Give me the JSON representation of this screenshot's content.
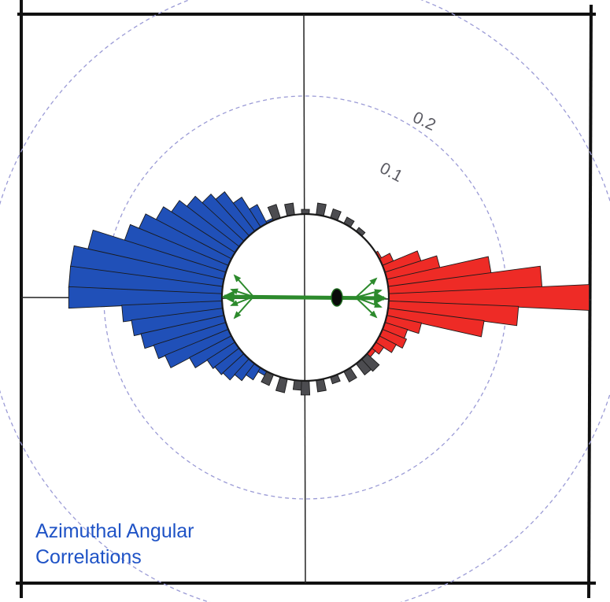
{
  "chart_data": {
    "type": "polar-histogram",
    "title_lines": [
      "Azimuthal Angular",
      "Correlations"
    ],
    "ring_labels": [
      "0.1",
      "0.2"
    ],
    "radial_ticks": [
      0.1,
      0.2
    ],
    "angle_unit": "degrees (0 = right, counter-clockwise)",
    "grid": "dashed-circles",
    "colors": {
      "frame": "#111111",
      "axes": "#222222",
      "rings": "#9b9bd6",
      "away_side": "#2050b8",
      "near_side": "#ee2b26",
      "background": "#4c4c50",
      "arrow": "#2c8a2c",
      "title": "#1f53c6"
    },
    "series": [
      {
        "name": "",
        "color": "#2050b8",
        "bins": [
          {
            "angle": 115,
            "value": 0.002
          },
          {
            "angle": 120,
            "value": 0.018
          },
          {
            "angle": 125,
            "value": 0.03
          },
          {
            "angle": 130,
            "value": 0.042
          },
          {
            "angle": 135,
            "value": 0.048
          },
          {
            "angle": 140,
            "value": 0.056
          },
          {
            "angle": 145,
            "value": 0.064
          },
          {
            "angle": 150,
            "value": 0.072
          },
          {
            "angle": 155,
            "value": 0.082
          },
          {
            "angle": 160,
            "value": 0.09
          },
          {
            "angle": 165,
            "value": 0.118
          },
          {
            "angle": 170,
            "value": 0.13
          },
          {
            "angle": 175,
            "value": 0.13
          },
          {
            "angle": 180,
            "value": 0.13
          },
          {
            "angle": 185,
            "value": 0.085
          },
          {
            "angle": 190,
            "value": 0.078
          },
          {
            "angle": 195,
            "value": 0.072
          },
          {
            "angle": 200,
            "value": 0.064
          },
          {
            "angle": 205,
            "value": 0.058
          },
          {
            "angle": 210,
            "value": 0.04
          },
          {
            "angle": 215,
            "value": 0.028
          },
          {
            "angle": 220,
            "value": 0.026
          },
          {
            "angle": 225,
            "value": 0.024
          },
          {
            "angle": 230,
            "value": 0.018
          },
          {
            "angle": 235,
            "value": 0.012
          },
          {
            "angle": 240,
            "value": 0.004
          }
        ]
      },
      {
        "name": "",
        "color": "#ee2b26",
        "bins": [
          {
            "angle": 30,
            "value": 0.002
          },
          {
            "angle": 25,
            "value": 0.01
          },
          {
            "angle": 20,
            "value": 0.032
          },
          {
            "angle": 15,
            "value": 0.046
          },
          {
            "angle": 10,
            "value": 0.088
          },
          {
            "angle": 5,
            "value": 0.13
          },
          {
            "angle": 0,
            "value": 0.17
          },
          {
            "angle": -5,
            "value": 0.11
          },
          {
            "angle": -10,
            "value": 0.082
          },
          {
            "angle": -15,
            "value": 0.03
          },
          {
            "angle": -20,
            "value": 0.02
          },
          {
            "angle": -25,
            "value": 0.022
          },
          {
            "angle": -30,
            "value": 0.016
          },
          {
            "angle": -35,
            "value": 0.008
          },
          {
            "angle": -40,
            "value": 0.004
          }
        ]
      },
      {
        "name": "",
        "color": "#4c4c50",
        "bins": [
          {
            "angle": 50,
            "value": 0.004
          },
          {
            "angle": 60,
            "value": 0.006
          },
          {
            "angle": 70,
            "value": 0.008
          },
          {
            "angle": 80,
            "value": 0.01
          },
          {
            "angle": 90,
            "value": 0.004
          },
          {
            "angle": 100,
            "value": 0.01
          },
          {
            "angle": 110,
            "value": 0.012
          },
          {
            "angle": 245,
            "value": 0.01
          },
          {
            "angle": 255,
            "value": 0.012
          },
          {
            "angle": 265,
            "value": 0.008
          },
          {
            "angle": 270,
            "value": 0.012
          },
          {
            "angle": 280,
            "value": 0.01
          },
          {
            "angle": 290,
            "value": 0.006
          },
          {
            "angle": 300,
            "value": 0.01
          },
          {
            "angle": 310,
            "value": 0.012
          },
          {
            "angle": 315,
            "value": 0.014
          }
        ]
      }
    ]
  }
}
